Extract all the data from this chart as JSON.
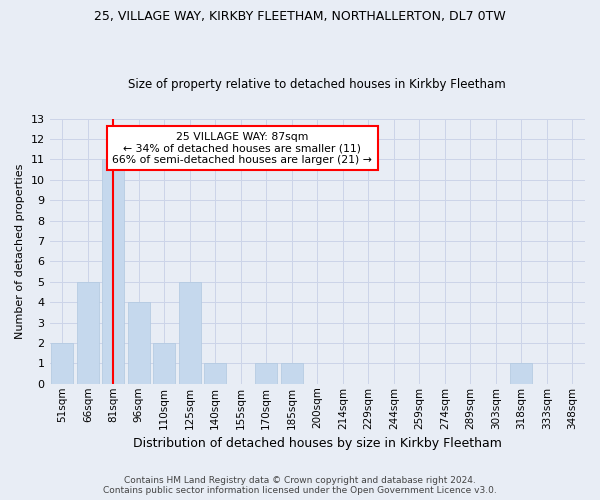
{
  "title1": "25, VILLAGE WAY, KIRKBY FLEETHAM, NORTHALLERTON, DL7 0TW",
  "title2": "Size of property relative to detached houses in Kirkby Fleetham",
  "xlabel": "Distribution of detached houses by size in Kirkby Fleetham",
  "ylabel": "Number of detached properties",
  "footer": "Contains HM Land Registry data © Crown copyright and database right 2024.\nContains public sector information licensed under the Open Government Licence v3.0.",
  "categories": [
    "51sqm",
    "66sqm",
    "81sqm",
    "96sqm",
    "110sqm",
    "125sqm",
    "140sqm",
    "155sqm",
    "170sqm",
    "185sqm",
    "200sqm",
    "214sqm",
    "229sqm",
    "244sqm",
    "259sqm",
    "274sqm",
    "289sqm",
    "303sqm",
    "318sqm",
    "333sqm",
    "348sqm"
  ],
  "values": [
    2,
    5,
    11,
    4,
    2,
    5,
    1,
    0,
    1,
    1,
    0,
    0,
    0,
    0,
    0,
    0,
    0,
    0,
    1,
    0,
    0
  ],
  "bar_color": "#c5d8ed",
  "bar_edgecolor": "#b0c8e0",
  "grid_color": "#ccd4e8",
  "background_color": "#e8edf5",
  "redline_x": 2,
  "annotation_text": "25 VILLAGE WAY: 87sqm\n← 34% of detached houses are smaller (11)\n66% of semi-detached houses are larger (21) →",
  "annotation_box_color": "white",
  "annotation_box_edgecolor": "red",
  "redline_color": "red",
  "ylim": [
    0,
    13
  ],
  "yticks": [
    0,
    1,
    2,
    3,
    4,
    5,
    6,
    7,
    8,
    9,
    10,
    11,
    12,
    13
  ],
  "title1_fontsize": 9,
  "title2_fontsize": 8.5,
  "ylabel_fontsize": 8,
  "xlabel_fontsize": 9
}
